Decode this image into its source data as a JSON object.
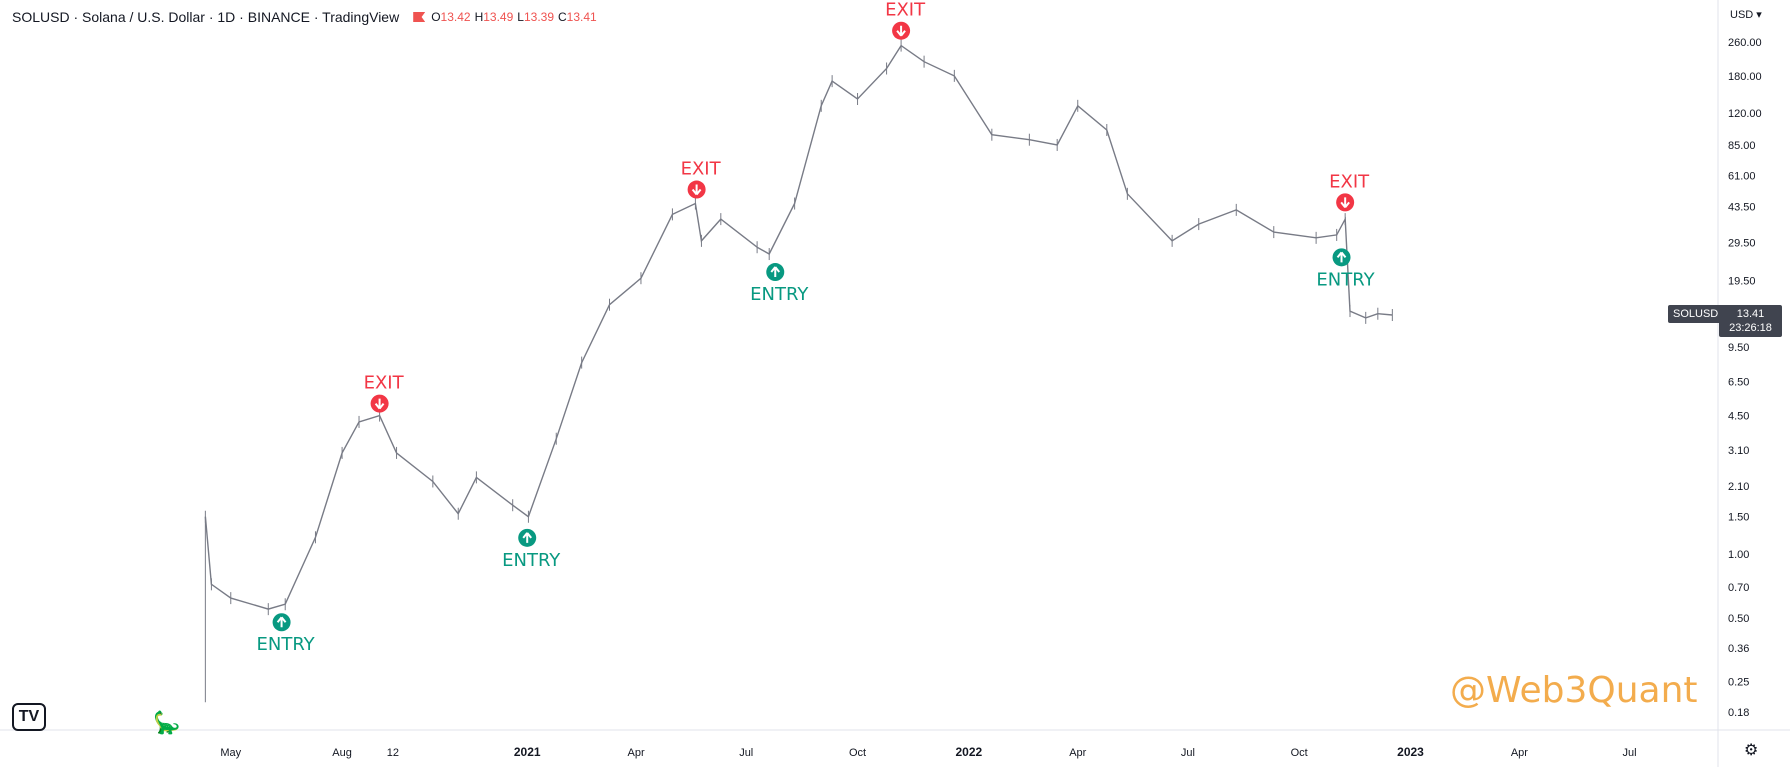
{
  "header": {
    "title": "SOLUSD · Solana / U.S. Dollar · 1D · BINANCE · TradingView",
    "ohlc": [
      {
        "k": "O",
        "v": "13.42"
      },
      {
        "k": "H",
        "v": "13.49"
      },
      {
        "k": "L",
        "v": "13.39"
      },
      {
        "k": "C",
        "v": "13.41"
      }
    ]
  },
  "price_axis": {
    "currency": "USD",
    "ticks": [
      "260.00",
      "180.00",
      "120.00",
      "85.00",
      "61.00",
      "43.50",
      "29.50",
      "19.50",
      "13.41",
      "9.50",
      "6.50",
      "4.50",
      "3.10",
      "2.10",
      "1.50",
      "1.00",
      "0.70",
      "0.50",
      "0.36",
      "0.25",
      "0.18"
    ]
  },
  "last_price": {
    "symbol": "SOLUSD",
    "value": "13.41",
    "countdown": "23:26:18"
  },
  "watermark": "@Web3Quant",
  "colors": {
    "entry": "#089981",
    "exit": "#f23645",
    "candle": "#787b86",
    "label_bg": "#40444f"
  },
  "icons": {
    "logo": "tradingview-logo-icon",
    "settings": "gear-icon",
    "dino": "dinosaur-icon"
  },
  "chart_data": {
    "type": "line",
    "log_scale": true,
    "x_labels": [
      "May",
      "Aug",
      "12",
      "2021",
      "Apr",
      "Jul",
      "Oct",
      "2022",
      "Apr",
      "Jul",
      "Oct",
      "2023",
      "Apr",
      "Jul"
    ],
    "x_bold": [
      "2021",
      "2022",
      "2023"
    ],
    "series": [
      {
        "values": [
          {
            "x": "2020-04-10",
            "y": 1.5
          },
          {
            "x": "2020-04-15",
            "y": 0.72
          },
          {
            "x": "2020-05-01",
            "y": 0.62
          },
          {
            "x": "2020-06-01",
            "y": 0.55
          },
          {
            "x": "2020-06-15",
            "y": 0.58
          },
          {
            "x": "2020-07-10",
            "y": 1.2
          },
          {
            "x": "2020-08-01",
            "y": 3.0
          },
          {
            "x": "2020-08-15",
            "y": 4.2
          },
          {
            "x": "2020-09-01",
            "y": 4.5
          },
          {
            "x": "2020-09-15",
            "y": 3.0
          },
          {
            "x": "2020-10-15",
            "y": 2.2
          },
          {
            "x": "2020-11-05",
            "y": 1.55
          },
          {
            "x": "2020-11-20",
            "y": 2.3
          },
          {
            "x": "2020-12-20",
            "y": 1.7
          },
          {
            "x": "2021-01-02",
            "y": 1.5
          },
          {
            "x": "2021-01-25",
            "y": 3.5
          },
          {
            "x": "2021-02-15",
            "y": 8.0
          },
          {
            "x": "2021-03-10",
            "y": 15.0
          },
          {
            "x": "2021-04-05",
            "y": 20.0
          },
          {
            "x": "2021-05-01",
            "y": 40.0
          },
          {
            "x": "2021-05-20",
            "y": 45.0
          },
          {
            "x": "2021-05-25",
            "y": 30.0
          },
          {
            "x": "2021-06-10",
            "y": 38.0
          },
          {
            "x": "2021-07-10",
            "y": 28.0
          },
          {
            "x": "2021-07-20",
            "y": 26.0
          },
          {
            "x": "2021-08-10",
            "y": 45.0
          },
          {
            "x": "2021-09-01",
            "y": 130.0
          },
          {
            "x": "2021-09-10",
            "y": 170.0
          },
          {
            "x": "2021-10-01",
            "y": 140.0
          },
          {
            "x": "2021-10-25",
            "y": 195.0
          },
          {
            "x": "2021-11-06",
            "y": 250.0
          },
          {
            "x": "2021-11-25",
            "y": 210.0
          },
          {
            "x": "2021-12-20",
            "y": 180.0
          },
          {
            "x": "2022-01-20",
            "y": 95.0
          },
          {
            "x": "2022-02-20",
            "y": 90.0
          },
          {
            "x": "2022-03-15",
            "y": 85.0
          },
          {
            "x": "2022-04-01",
            "y": 130.0
          },
          {
            "x": "2022-04-25",
            "y": 100.0
          },
          {
            "x": "2022-05-12",
            "y": 50.0
          },
          {
            "x": "2022-06-18",
            "y": 30.0
          },
          {
            "x": "2022-07-10",
            "y": 36.0
          },
          {
            "x": "2022-08-10",
            "y": 42.0
          },
          {
            "x": "2022-09-10",
            "y": 33.0
          },
          {
            "x": "2022-10-15",
            "y": 31.0
          },
          {
            "x": "2022-11-01",
            "y": 32.0
          },
          {
            "x": "2022-11-08",
            "y": 38.0
          },
          {
            "x": "2022-11-12",
            "y": 14.0
          },
          {
            "x": "2022-11-25",
            "y": 13.0
          },
          {
            "x": "2022-12-05",
            "y": 13.6
          },
          {
            "x": "2022-12-17",
            "y": 13.41
          }
        ]
      }
    ],
    "annotations": [
      {
        "label": "ENTRY",
        "kind": "entry",
        "x": "2020-06-12",
        "y": 0.58
      },
      {
        "label": "EXIT",
        "kind": "exit",
        "x": "2020-09-01",
        "y": 4.5
      },
      {
        "label": "ENTRY",
        "kind": "entry",
        "x": "2021-01-01",
        "y": 1.45
      },
      {
        "label": "EXIT",
        "kind": "exit",
        "x": "2021-05-21",
        "y": 46.0
      },
      {
        "label": "ENTRY",
        "kind": "entry",
        "x": "2021-07-25",
        "y": 26.0
      },
      {
        "label": "EXIT",
        "kind": "exit",
        "x": "2021-11-06",
        "y": 258.0
      },
      {
        "label": "ENTRY",
        "kind": "entry",
        "x": "2022-11-05",
        "y": 30.5
      },
      {
        "label": "EXIT",
        "kind": "exit",
        "x": "2022-11-08",
        "y": 40.0
      }
    ]
  }
}
